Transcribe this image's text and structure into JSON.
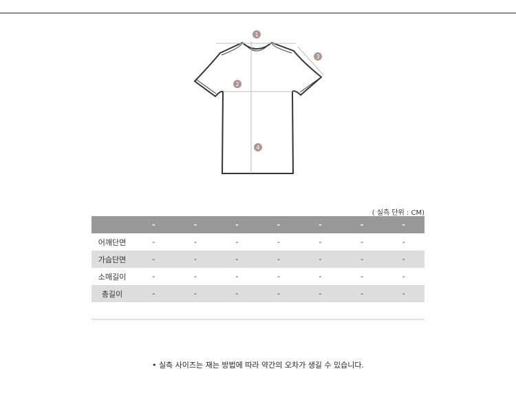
{
  "diagram": {
    "markers": [
      "1",
      "2",
      "3",
      "4"
    ],
    "marker_color": "#b09590"
  },
  "table": {
    "unit_label": "( 실측 단위 : CM)",
    "header": [
      "",
      "-",
      "-",
      "-",
      "-",
      "-",
      "-",
      "-"
    ],
    "rows": [
      {
        "label": "어깨단면",
        "values": [
          "-",
          "-",
          "-",
          "-",
          "-",
          "-",
          "-"
        ]
      },
      {
        "label": "가슴단면",
        "values": [
          "-",
          "-",
          "-",
          "-",
          "-",
          "-",
          "-"
        ]
      },
      {
        "label": "소매길이",
        "values": [
          "-",
          "-",
          "-",
          "-",
          "-",
          "-",
          "-"
        ]
      },
      {
        "label": "총길이",
        "values": [
          "-",
          "-",
          "-",
          "-",
          "-",
          "-",
          "-"
        ]
      }
    ]
  },
  "note": "• 실측 사이즈는 재는 방법에 따라 약간의 오차가 생길 수 있습니다."
}
